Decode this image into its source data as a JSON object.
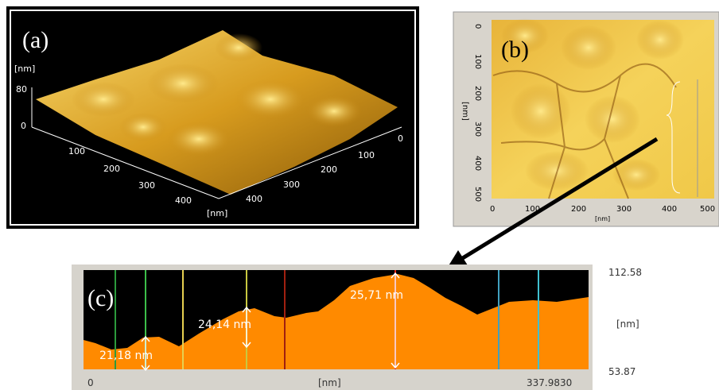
{
  "panels": [
    {
      "label": "(a)",
      "z_unit": "[nm]",
      "z_ticks": [
        "80",
        "0"
      ],
      "x_unit": "[nm]",
      "x_ticks": [
        "100",
        "200",
        "300",
        "400"
      ],
      "y_ticks": [
        "0",
        "100",
        "200",
        "300",
        "400"
      ]
    },
    {
      "label": "(b)",
      "y_unit": "[nm]",
      "y_ticks": [
        "0",
        "100",
        "200",
        "300",
        "400",
        "500"
      ],
      "x_unit": "[nm]",
      "x_ticks": [
        "0",
        "100",
        "200",
        "300",
        "400",
        "500"
      ]
    },
    {
      "label": "(c)",
      "heights": [
        "21,18 nm",
        "24,14 nm",
        "25,71 nm"
      ],
      "y_max": "112.58",
      "y_unit": "[nm]",
      "y_min": "53.87",
      "x_min": "0",
      "x_unit": "[nm]",
      "x_max": "337.9830"
    }
  ]
}
